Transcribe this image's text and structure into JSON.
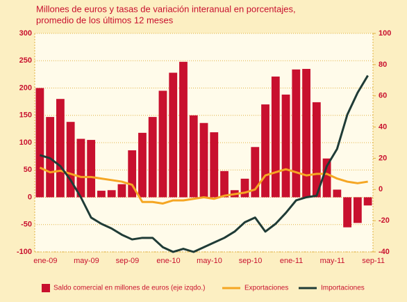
{
  "chart_data": {
    "type": "bar-line",
    "title": [
      "Millones de euros y tasas de variación interanual en porcentajes,",
      "promedio de los últimos 12 meses"
    ],
    "categories": [
      "ene-09",
      null,
      null,
      null,
      "may-09",
      null,
      null,
      null,
      "sep-09",
      null,
      null,
      null,
      "ene-10",
      null,
      null,
      null,
      "may-10",
      null,
      null,
      null,
      "sep-10",
      null,
      null,
      null,
      "ene-11",
      null,
      null,
      null,
      "may-11",
      null,
      null,
      null,
      "sep-11"
    ],
    "series": [
      {
        "name": "Saldo comercial en millones de euros (eje izqdo.)",
        "type": "bar",
        "axis": "y",
        "color": "#c8102e",
        "values": [
          200,
          147,
          180,
          138,
          107,
          105,
          12,
          13,
          24,
          86,
          118,
          147,
          195,
          228,
          248,
          150,
          136,
          119,
          48,
          13,
          34,
          92,
          170,
          221,
          188,
          234,
          235,
          174,
          71,
          14,
          -55,
          -47,
          -15
        ]
      },
      {
        "name": "Exportaciones",
        "type": "line",
        "axis": "y2",
        "color": "#f5a623",
        "values": [
          14,
          11,
          12,
          10,
          8,
          8,
          7,
          6,
          5,
          3,
          -8,
          -8,
          -9,
          -7,
          -7,
          -6,
          -5,
          -6,
          -4,
          -3,
          -2,
          0,
          9,
          11,
          13,
          11,
          9,
          10,
          10,
          7,
          5,
          4,
          5
        ]
      },
      {
        "name": "Importaciones",
        "type": "line",
        "axis": "y2",
        "color": "#1f3b36",
        "values": [
          22,
          20,
          15,
          6,
          -5,
          -18,
          -22,
          -25,
          -29,
          -32,
          -31,
          -31,
          -37,
          -40,
          -38,
          -40,
          -37,
          -34,
          -31,
          -27,
          -21,
          -18,
          -27,
          -22,
          -15,
          -7,
          -5,
          -4,
          15,
          26,
          48,
          62,
          73
        ]
      }
    ],
    "ylim": [
      -100,
      300
    ],
    "yticks": [
      -100,
      -50,
      0,
      50,
      100,
      150,
      200,
      250,
      300
    ],
    "y2lim": [
      -40,
      100
    ],
    "y2ticks": [
      -40,
      -20,
      0,
      20,
      40,
      60,
      80,
      100
    ],
    "grid": true
  }
}
